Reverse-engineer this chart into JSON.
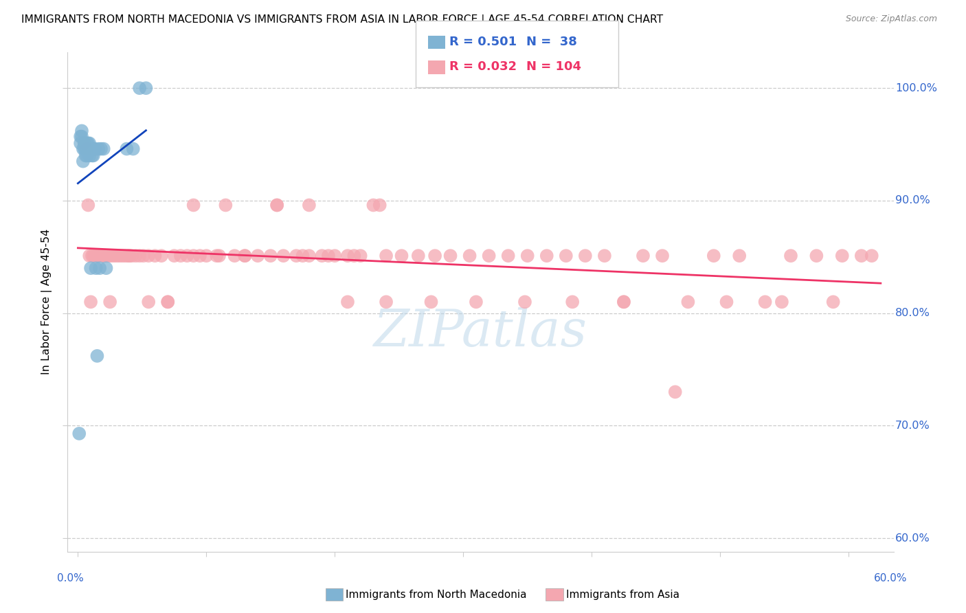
{
  "title": "IMMIGRANTS FROM NORTH MACEDONIA VS IMMIGRANTS FROM ASIA IN LABOR FORCE | AGE 45-54 CORRELATION CHART",
  "source": "Source: ZipAtlas.com",
  "ylabel": "In Labor Force | Age 45-54",
  "y_ticks": [
    0.6,
    0.7,
    0.8,
    0.9,
    1.0
  ],
  "y_tick_labels": [
    "60.0%",
    "70.0%",
    "80.0%",
    "90.0%",
    "100.0%"
  ],
  "x_ticks": [
    0.0,
    0.1,
    0.2,
    0.3,
    0.4,
    0.5,
    0.6
  ],
  "xlim": [
    -0.008,
    0.635
  ],
  "ylim": [
    0.588,
    1.032
  ],
  "legend_blue_R": "0.501",
  "legend_blue_N": "38",
  "legend_pink_R": "0.032",
  "legend_pink_N": "104",
  "legend_label_blue": "Immigrants from North Macedonia",
  "legend_label_pink": "Immigrants from Asia",
  "blue_color": "#7FB3D3",
  "pink_color": "#F4A7B0",
  "blue_line_color": "#1144BB",
  "pink_line_color": "#EE3366",
  "watermark": "ZIPatlas",
  "blue_scatter_x": [
    0.001,
    0.002,
    0.002,
    0.003,
    0.003,
    0.004,
    0.004,
    0.005,
    0.005,
    0.005,
    0.006,
    0.006,
    0.007,
    0.007,
    0.007,
    0.008,
    0.008,
    0.009,
    0.009,
    0.009,
    0.01,
    0.01,
    0.011,
    0.011,
    0.012,
    0.012,
    0.013,
    0.014,
    0.015,
    0.016,
    0.017,
    0.018,
    0.02,
    0.022,
    0.038,
    0.043,
    0.048,
    0.053
  ],
  "blue_scatter_y": [
    0.693,
    0.957,
    0.951,
    0.962,
    0.957,
    0.946,
    0.935,
    0.951,
    0.946,
    0.951,
    0.946,
    0.94,
    0.951,
    0.946,
    0.94,
    0.951,
    0.946,
    0.951,
    0.946,
    0.94,
    0.946,
    0.84,
    0.946,
    0.94,
    0.946,
    0.94,
    0.946,
    0.84,
    0.762,
    0.946,
    0.84,
    0.946,
    0.946,
    0.84,
    0.946,
    0.946,
    1.0,
    1.0
  ],
  "pink_scatter_x": [
    0.005,
    0.007,
    0.01,
    0.011,
    0.012,
    0.013,
    0.015,
    0.016,
    0.017,
    0.018,
    0.019,
    0.02,
    0.021,
    0.022,
    0.024,
    0.026,
    0.028,
    0.03,
    0.032,
    0.034,
    0.036,
    0.038,
    0.04,
    0.042,
    0.045,
    0.048,
    0.051,
    0.055,
    0.06,
    0.065,
    0.07,
    0.075,
    0.08,
    0.085,
    0.09,
    0.095,
    0.1,
    0.108,
    0.115,
    0.122,
    0.13,
    0.14,
    0.15,
    0.16,
    0.17,
    0.18,
    0.19,
    0.2,
    0.21,
    0.22,
    0.23,
    0.24,
    0.252,
    0.265,
    0.278,
    0.29,
    0.305,
    0.32,
    0.335,
    0.35,
    0.365,
    0.38,
    0.395,
    0.41,
    0.425,
    0.44,
    0.455,
    0.475,
    0.495,
    0.515,
    0.535,
    0.555,
    0.575,
    0.595,
    0.61,
    0.155,
    0.175,
    0.195,
    0.215,
    0.235,
    0.008,
    0.009,
    0.014,
    0.025,
    0.04,
    0.055,
    0.07,
    0.09,
    0.11,
    0.13,
    0.155,
    0.18,
    0.21,
    0.24,
    0.275,
    0.31,
    0.348,
    0.385,
    0.425,
    0.465,
    0.505,
    0.548,
    0.588,
    0.618
  ],
  "pink_scatter_y": [
    0.951,
    0.946,
    0.81,
    0.851,
    0.851,
    0.851,
    0.851,
    0.851,
    0.851,
    0.851,
    0.851,
    0.851,
    0.851,
    0.851,
    0.851,
    0.851,
    0.851,
    0.851,
    0.851,
    0.851,
    0.851,
    0.851,
    0.851,
    0.851,
    0.851,
    0.851,
    0.851,
    0.851,
    0.851,
    0.851,
    0.81,
    0.851,
    0.851,
    0.851,
    0.851,
    0.851,
    0.851,
    0.851,
    0.896,
    0.851,
    0.851,
    0.851,
    0.851,
    0.851,
    0.851,
    0.851,
    0.851,
    0.851,
    0.851,
    0.851,
    0.896,
    0.851,
    0.851,
    0.851,
    0.851,
    0.851,
    0.851,
    0.851,
    0.851,
    0.851,
    0.851,
    0.851,
    0.851,
    0.851,
    0.81,
    0.851,
    0.851,
    0.81,
    0.851,
    0.851,
    0.81,
    0.851,
    0.851,
    0.851,
    0.851,
    0.896,
    0.851,
    0.851,
    0.851,
    0.896,
    0.896,
    0.851,
    0.851,
    0.81,
    0.851,
    0.81,
    0.81,
    0.896,
    0.851,
    0.851,
    0.896,
    0.896,
    0.81,
    0.81,
    0.81,
    0.81,
    0.81,
    0.81,
    0.81,
    0.73,
    0.81,
    0.81,
    0.81,
    0.851
  ]
}
